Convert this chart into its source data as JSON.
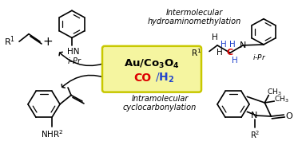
{
  "bg_color": "#ffffff",
  "box_facecolor": "#f5f5a0",
  "box_edgecolor": "#c8c800",
  "black": "#000000",
  "red": "#dd0000",
  "blue": "#2244cc",
  "gray": "#444444",
  "inter_line1": "Intermolecular",
  "inter_line2": "hydroaminomethylation",
  "intra_line1": "Intramolecular",
  "intra_line2": "cyclocarbonylation",
  "au_label": "Au/Co$_3$O$_4$",
  "co_label": "CO",
  "h2_label": "/H$_2$"
}
